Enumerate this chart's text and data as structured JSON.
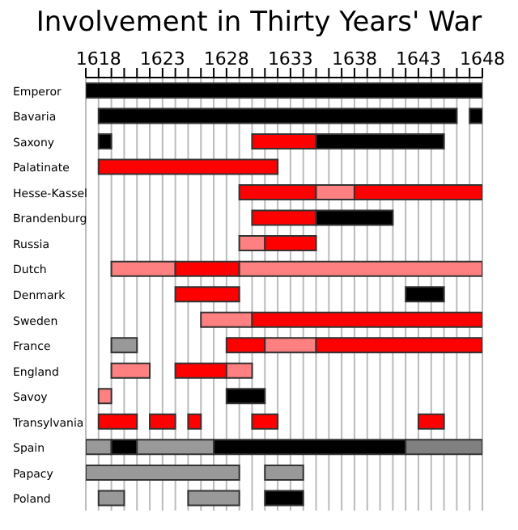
{
  "chart_data": {
    "type": "bar",
    "title": "Involvement in Thirty Years' War",
    "orientation": "horizontal",
    "categories": [
      "Emperor",
      "Bavaria",
      "Saxony",
      "Palatinate",
      "Hesse-Kassel",
      "Brandenburg",
      "Russia",
      "Dutch",
      "Denmark",
      "Sweden",
      "France",
      "England",
      "Savoy",
      "Transylvania",
      "Spain",
      "Papacy",
      "Poland"
    ],
    "xlim": [
      1617,
      1648
    ],
    "xticks": [
      {
        "value": 1617,
        "label": null
      },
      1618,
      {
        "value": 1619,
        "label": null
      },
      {
        "value": 1620,
        "label": null
      },
      {
        "value": 1621,
        "label": null
      },
      {
        "value": 1622,
        "label": null
      },
      1623,
      {
        "value": 1624,
        "label": null
      },
      {
        "value": 1625,
        "label": null
      },
      {
        "value": 1626,
        "label": null
      },
      {
        "value": 1627,
        "label": null
      },
      1628,
      {
        "value": 1629,
        "label": null
      },
      {
        "value": 1630,
        "label": null
      },
      {
        "value": 1631,
        "label": null
      },
      {
        "value": 1632,
        "label": null
      },
      1633,
      {
        "value": 1634,
        "label": null
      },
      {
        "value": 1635,
        "label": null
      },
      {
        "value": 1636,
        "label": null
      },
      {
        "value": 1637,
        "label": null
      },
      1638,
      {
        "value": 1639,
        "label": null
      },
      {
        "value": 1640,
        "label": null
      },
      {
        "value": 1641,
        "label": null
      },
      {
        "value": 1642,
        "label": null
      },
      1643,
      {
        "value": 1644,
        "label": null
      },
      {
        "value": 1645,
        "label": null
      },
      {
        "value": 1646,
        "label": null
      },
      {
        "value": 1647,
        "label": null
      },
      1648
    ],
    "grid": "x",
    "series": [
      {
        "base": [
          1617,
          1618,
          1618,
          1618,
          1629,
          1630,
          1629,
          1619,
          1624,
          1626,
          1619,
          1619,
          1618,
          1618,
          1617,
          1617,
          1618
        ],
        "values": [
          31,
          28,
          1,
          14,
          6,
          5,
          2,
          5,
          5,
          4,
          2,
          3,
          1,
          3,
          2,
          12,
          2
        ],
        "colors": [
          "#000000",
          "#000000",
          "#000000",
          "#ff0000",
          "#ff0000",
          "#ff0000",
          "#ff8080",
          "#ff8080",
          "#ff0000",
          "#ff8080",
          "#999999",
          "#ff8080",
          "#ff8080",
          "#ff0000",
          "#999999",
          "#999999",
          "#999999"
        ]
      },
      {
        "base": [
          null,
          1647,
          1630,
          null,
          1635,
          1635,
          1631,
          1624,
          1642,
          1630,
          1628,
          1624,
          1628,
          1622,
          1619,
          1631,
          1625
        ],
        "values": [
          null,
          1,
          5,
          null,
          3,
          6,
          4,
          5,
          3,
          18,
          3,
          4,
          3,
          2,
          2,
          3,
          4
        ],
        "colors": [
          null,
          "#000000",
          "#ff0000",
          null,
          "#ff8080",
          "#000000",
          "#ff0000",
          "#ff0000",
          "#000000",
          "#ff0000",
          "#ff0000",
          "#ff0000",
          "#000000",
          "#ff0000",
          "#000000",
          "#999999",
          "#999999"
        ]
      },
      {
        "base": [
          null,
          null,
          1635,
          null,
          1638,
          null,
          null,
          1629,
          null,
          null,
          1631,
          1628,
          null,
          1625,
          1621,
          null,
          1631
        ],
        "values": [
          null,
          null,
          10,
          null,
          10,
          null,
          null,
          19,
          null,
          null,
          4,
          2,
          null,
          1,
          6,
          null,
          3
        ],
        "colors": [
          null,
          null,
          "#000000",
          null,
          "#ff0000",
          null,
          null,
          "#ff8080",
          null,
          null,
          "#ff8080",
          "#ff8080",
          null,
          "#ff0000",
          "#999999",
          null,
          "#000000"
        ]
      },
      {
        "base": [
          null,
          null,
          null,
          null,
          null,
          null,
          null,
          null,
          null,
          null,
          1635,
          null,
          null,
          1630,
          1627,
          null,
          null
        ],
        "values": [
          null,
          null,
          null,
          null,
          null,
          null,
          null,
          null,
          null,
          null,
          13,
          null,
          null,
          2,
          15,
          null,
          null
        ],
        "colors": [
          null,
          null,
          null,
          null,
          null,
          null,
          null,
          null,
          null,
          null,
          "#ff0000",
          null,
          null,
          "#ff0000",
          "#000000",
          null,
          null
        ]
      },
      {
        "base": [
          null,
          null,
          null,
          null,
          null,
          null,
          null,
          null,
          null,
          null,
          null,
          null,
          null,
          1643,
          1642,
          null,
          null
        ],
        "values": [
          null,
          null,
          null,
          null,
          null,
          null,
          null,
          null,
          null,
          null,
          null,
          null,
          null,
          2,
          6,
          null,
          null
        ],
        "colors": [
          null,
          null,
          null,
          null,
          null,
          null,
          null,
          null,
          null,
          null,
          null,
          null,
          null,
          "#ff0000",
          "#808080",
          null,
          null
        ]
      }
    ]
  }
}
